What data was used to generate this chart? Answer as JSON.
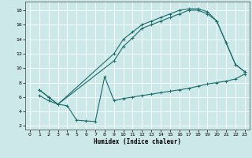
{
  "xlabel": "Humidex (Indice chaleur)",
  "ylabel": "",
  "xlim": [
    -0.5,
    23.5
  ],
  "ylim": [
    1.5,
    19.2
  ],
  "xticks": [
    0,
    1,
    2,
    3,
    4,
    5,
    6,
    7,
    8,
    9,
    10,
    11,
    12,
    13,
    14,
    15,
    16,
    17,
    18,
    19,
    20,
    21,
    22,
    23
  ],
  "yticks": [
    2,
    4,
    6,
    8,
    10,
    12,
    14,
    16,
    18
  ],
  "bg_color": "#cde8e8",
  "line_color": "#1a6b6b",
  "grid_color": "#ffffff",
  "line1_x": [
    1,
    2,
    3,
    9,
    10,
    11,
    12,
    13,
    14,
    15,
    16,
    17,
    18,
    19,
    20,
    21,
    22,
    23
  ],
  "line1_y": [
    7,
    6,
    5,
    12,
    14,
    15,
    16,
    16.5,
    17,
    17.5,
    18,
    18.2,
    18.2,
    17.8,
    16.5,
    13.5,
    10.5,
    9.5
  ],
  "line2_x": [
    1,
    2,
    3,
    9,
    10,
    11,
    12,
    13,
    14,
    15,
    16,
    17,
    18,
    19,
    20,
    21,
    22,
    23
  ],
  "line2_y": [
    7,
    6,
    5,
    11,
    13,
    14.2,
    15.5,
    16,
    16.5,
    17,
    17.5,
    18,
    18,
    17.5,
    16.5,
    13.5,
    10.5,
    9.5
  ],
  "line3_x": [
    1,
    2,
    3,
    4,
    5,
    6,
    7,
    8,
    9,
    10,
    11,
    12,
    13,
    14,
    15,
    16,
    17,
    18,
    19,
    20,
    21,
    22,
    23
  ],
  "line3_y": [
    6.2,
    5.5,
    5,
    4.8,
    2.8,
    2.7,
    2.6,
    8.8,
    5.5,
    5.8,
    6.0,
    6.2,
    6.4,
    6.6,
    6.8,
    7.0,
    7.2,
    7.5,
    7.8,
    8.0,
    8.2,
    8.5,
    9.2
  ],
  "xlabel_fontsize": 5.5,
  "tick_fontsize": 4.5
}
